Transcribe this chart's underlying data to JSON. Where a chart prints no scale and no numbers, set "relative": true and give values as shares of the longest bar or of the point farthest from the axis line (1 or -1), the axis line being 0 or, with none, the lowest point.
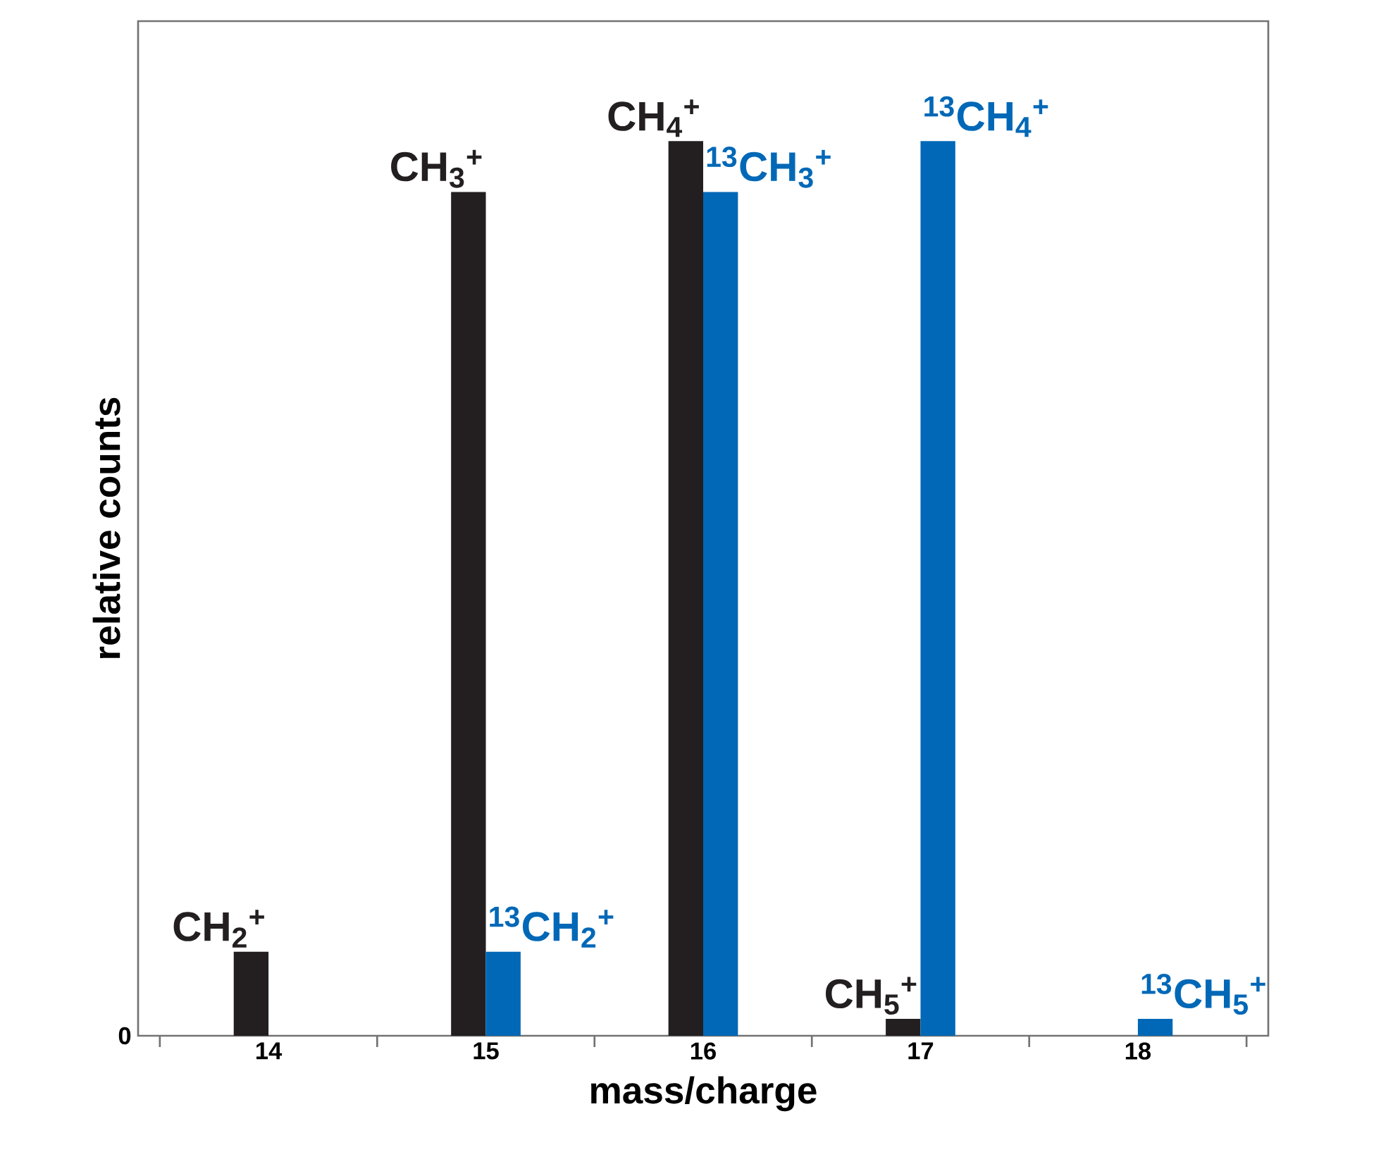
{
  "chart_data": {
    "type": "bar",
    "relative": true,
    "xlabel": "mass/charge",
    "ylabel": "relative counts",
    "categories": [
      "14",
      "15",
      "16",
      "17",
      "18"
    ],
    "series": [
      {
        "color": "#231f20",
        "values": [
          0.094,
          0.943,
          1.0,
          0.019,
          null
        ]
      },
      {
        "color": "#0068b7",
        "values": [
          null,
          0.094,
          0.943,
          1.0,
          0.019
        ]
      }
    ],
    "annotations": [
      "0",
      {
        "text": "CH$_{2}$$^{+}$",
        "x": "14",
        "y": 0.094
      },
      {
        "text": "CH$_{3}$$^{+}$",
        "x": "15",
        "y": 0.943
      },
      {
        "text": "CH$_{4}$$^{+}$",
        "x": "16",
        "y": 1.0
      },
      {
        "text": "CH$_{5}$$^{+}$",
        "x": "17",
        "y": 0.019
      },
      {
        "text": "$^{13}$CH$_{2}$$^{+}$",
        "x": "15",
        "y": 0.094
      },
      {
        "text": "$^{13}$CH$_{3}$$^{+}$",
        "x": "16",
        "y": 0.943
      },
      {
        "text": "$^{13}$CH$_{4}$$^{+}$",
        "x": "17",
        "y": 1.0
      },
      {
        "text": "$^{13}$CH$_{5}$$^{+}$",
        "x": "18",
        "y": 0.019
      }
    ]
  }
}
